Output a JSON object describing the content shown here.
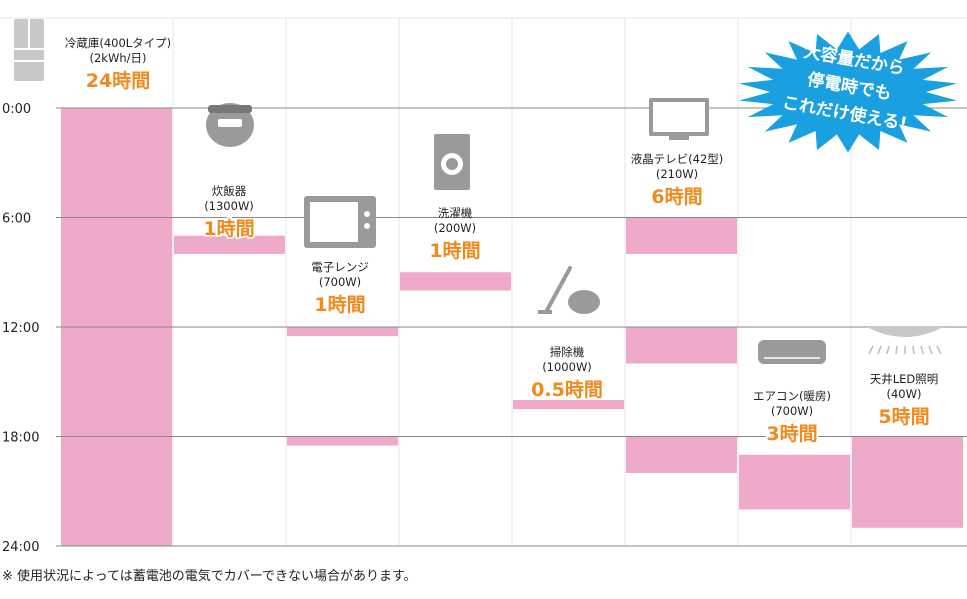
{
  "chart_data": {
    "type": "bar",
    "orientation": "vertical-time",
    "y_axis": {
      "unit": "hour",
      "ylim": [
        0,
        24
      ],
      "ticks": [
        0,
        6,
        12,
        18,
        24
      ],
      "tick_labels": [
        "0:00",
        "6:00",
        "12:00",
        "18:00",
        "24:00"
      ],
      "grid": true
    },
    "categories": [
      {
        "name": "冷蔵庫(400Lタイプ)",
        "watt": "(2kWh/日)",
        "hours_label": "24時間",
        "icon": "refrigerator-icon",
        "usage": [
          [
            0,
            24
          ]
        ]
      },
      {
        "name": "炊飯器",
        "watt": "(1300W)",
        "hours_label": "1時間",
        "icon": "rice-cooker-icon",
        "usage": [
          [
            7,
            8
          ]
        ]
      },
      {
        "name": "電子レンジ",
        "watt": "(700W)",
        "hours_label": "1時間",
        "icon": "microwave-icon",
        "usage": [
          [
            12,
            12.5
          ],
          [
            18,
            18.5
          ]
        ]
      },
      {
        "name": "洗濯機",
        "watt": "(200W)",
        "hours_label": "1時間",
        "icon": "washing-machine-icon",
        "usage": [
          [
            9,
            10
          ]
        ]
      },
      {
        "name": "掃除機",
        "watt": "(1000W)",
        "hours_label": "0.5時間",
        "icon": "vacuum-cleaner-icon",
        "usage": [
          [
            16,
            16.5
          ]
        ]
      },
      {
        "name": "液晶テレビ(42型)",
        "watt": "(210W)",
        "hours_label": "6時間",
        "icon": "lcd-tv-icon",
        "usage": [
          [
            6,
            8
          ],
          [
            12,
            14
          ],
          [
            18,
            20
          ]
        ]
      },
      {
        "name": "エアコン(暖房)",
        "watt": "(700W)",
        "hours_label": "3時間",
        "icon": "air-conditioner-icon",
        "usage": [
          [
            19,
            22
          ]
        ]
      },
      {
        "name": "天井LED照明",
        "watt": "(40W)",
        "hours_label": "5時間",
        "icon": "ceiling-light-icon",
        "usage": [
          [
            18,
            23
          ]
        ]
      }
    ]
  },
  "burst": {
    "lines": [
      "大容量だから",
      "停電時でも",
      "これだけ使える!"
    ],
    "color": "#1aa0e0"
  },
  "footnote": "※ 使用状況によっては蓄電池の電気でカバーできない場合があります。",
  "colors": {
    "bar": "#eeaac8",
    "hours_text": "#f08a1c",
    "grid": "#888888",
    "column_line": "#e6e6e6",
    "icon": "#9a9a9a"
  }
}
